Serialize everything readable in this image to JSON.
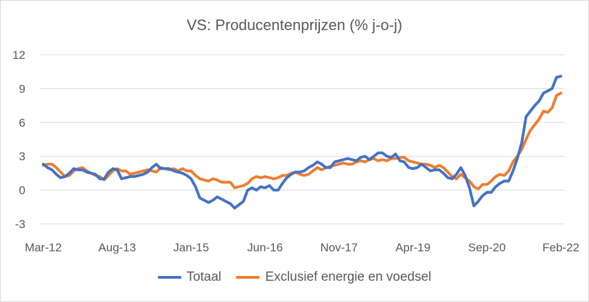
{
  "chart_data": {
    "type": "line",
    "title": "VS: Producentenprijzen (% j-o-j)",
    "xlabel": "",
    "ylabel": "",
    "ylim": [
      -3,
      12
    ],
    "yticks": [
      "-3",
      "0",
      "3",
      "6",
      "9",
      "12"
    ],
    "ytick_values": [
      -3,
      0,
      3,
      6,
      9,
      12
    ],
    "xtick_labels": [
      "Mar-12",
      "Aug-13",
      "Jan-15",
      "Jun-16",
      "Nov-17",
      "Apr-19",
      "Sep-20",
      "Feb-22"
    ],
    "xtick_index": [
      0,
      17,
      34,
      51,
      68,
      85,
      102,
      119
    ],
    "n_points": 120,
    "grid": true,
    "legend_position": "bottom",
    "colors": {
      "Totaal": "#4472c4",
      "Exclusief energie en voedsel": "#ed7d31"
    },
    "series": [
      {
        "name": "Totaal",
        "values": [
          2.3,
          2.0,
          1.8,
          1.4,
          1.1,
          1.2,
          1.5,
          1.9,
          1.8,
          1.8,
          1.6,
          1.5,
          1.4,
          1.0,
          1.0,
          1.6,
          1.9,
          1.8,
          1.0,
          1.1,
          1.2,
          1.2,
          1.3,
          1.4,
          1.6,
          2.0,
          2.3,
          1.9,
          1.9,
          1.9,
          1.7,
          1.6,
          1.5,
          1.3,
          1.0,
          0.3,
          -0.7,
          -0.9,
          -1.1,
          -0.9,
          -0.6,
          -0.8,
          -1.0,
          -1.2,
          -1.6,
          -1.3,
          -1.0,
          0.0,
          0.2,
          0.0,
          0.3,
          0.2,
          0.4,
          0.0,
          0.0,
          0.6,
          1.1,
          1.4,
          1.6,
          1.6,
          1.7,
          2.0,
          2.2,
          2.5,
          2.3,
          2.0,
          2.0,
          2.5,
          2.6,
          2.7,
          2.8,
          2.7,
          2.6,
          2.9,
          3.0,
          2.7,
          3.0,
          3.3,
          3.3,
          3.0,
          2.9,
          3.2,
          2.6,
          2.5,
          2.0,
          1.9,
          2.0,
          2.3,
          2.0,
          1.7,
          1.8,
          1.8,
          1.5,
          1.1,
          1.0,
          1.4,
          2.0,
          1.3,
          0.2,
          -1.4,
          -1.0,
          -0.5,
          -0.2,
          -0.2,
          0.3,
          0.6,
          0.8,
          0.8,
          1.7,
          2.8,
          4.2,
          6.5,
          7.0,
          7.5,
          7.9,
          8.6,
          8.8,
          9.0,
          10.0,
          10.1
        ]
      },
      {
        "name": "Exclusief energie en voedsel",
        "values": [
          2.2,
          2.3,
          2.3,
          2.0,
          1.6,
          1.2,
          1.3,
          1.7,
          1.9,
          2.0,
          1.7,
          1.5,
          1.3,
          1.2,
          0.9,
          1.3,
          1.7,
          1.9,
          1.7,
          1.7,
          1.4,
          1.5,
          1.6,
          1.7,
          1.8,
          1.7,
          1.6,
          2.0,
          1.9,
          1.8,
          1.9,
          1.7,
          1.9,
          1.7,
          1.7,
          1.3,
          1.0,
          0.9,
          0.8,
          1.0,
          0.9,
          0.7,
          0.7,
          0.7,
          0.2,
          0.3,
          0.4,
          0.6,
          1.0,
          1.2,
          1.1,
          1.2,
          1.1,
          1.0,
          1.1,
          1.3,
          1.3,
          1.5,
          1.6,
          1.4,
          1.3,
          1.4,
          1.7,
          2.0,
          1.8,
          2.0,
          2.1,
          2.2,
          2.3,
          2.4,
          2.3,
          2.3,
          2.5,
          2.6,
          2.5,
          2.7,
          2.8,
          2.6,
          2.7,
          2.6,
          2.8,
          2.8,
          2.9,
          2.9,
          2.6,
          2.5,
          2.4,
          2.3,
          2.3,
          2.2,
          2.0,
          2.2,
          2.0,
          1.6,
          1.2,
          1.0,
          1.4,
          1.1,
          0.8,
          0.3,
          0.1,
          0.5,
          0.5,
          0.8,
          1.2,
          1.4,
          1.3,
          1.7,
          2.5,
          3.0,
          3.6,
          4.5,
          5.3,
          5.8,
          6.3,
          7.0,
          6.9,
          7.3,
          8.4,
          8.6
        ]
      }
    ]
  }
}
